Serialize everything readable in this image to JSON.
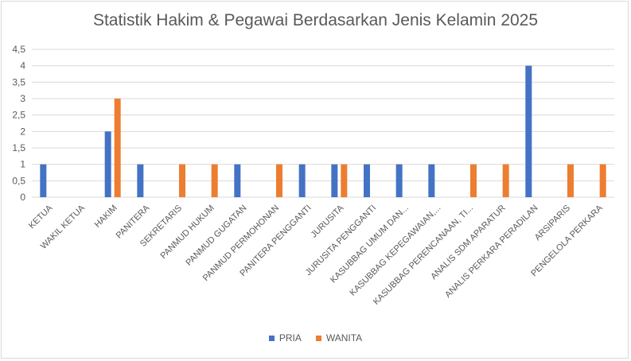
{
  "chart_data": {
    "type": "bar",
    "title": "Statistik Hakim & Pegawai Berdasarkan Jenis Kelamin 2025",
    "xlabel": "",
    "ylabel": "",
    "ylim": [
      0,
      4.5
    ],
    "yticks": [
      "0",
      "0,5",
      "1",
      "1,5",
      "2",
      "2,5",
      "3",
      "3,5",
      "4",
      "4,5"
    ],
    "grid": true,
    "legend_position": "bottom",
    "categories": [
      "KETUA",
      "WAKIL KETUA",
      "HAKIM",
      "PANITERA",
      "SEKRETARIS",
      "PANMUD HUKUM",
      "PANMUD GUGATAN",
      "PANMUD PERMOHONAN",
      "PANITERA PENGGANTI",
      "JURUSITA",
      "JURUSITA PENGGANTI",
      "KASUBBAG UMUM DAN...",
      "KASUBBAG KEPEGAWAIAN,...",
      "KASUBBAG PERENCANAAN, TI...",
      "ANALIS SDM APARATUR",
      "ANALIS PERKARA PERADILAN",
      "ARSIPARIS",
      "PENGELOLA PERKARA"
    ],
    "series": [
      {
        "name": "PRIA",
        "color": "#4472C4",
        "values": [
          1,
          0,
          2,
          1,
          0,
          0,
          1,
          0,
          1,
          1,
          1,
          1,
          1,
          0,
          0,
          4,
          0,
          0
        ]
      },
      {
        "name": "WANITA",
        "color": "#ED7D31",
        "values": [
          0,
          0,
          3,
          0,
          1,
          1,
          0,
          1,
          0,
          1,
          0,
          0,
          0,
          1,
          1,
          0,
          1,
          1
        ]
      }
    ]
  }
}
